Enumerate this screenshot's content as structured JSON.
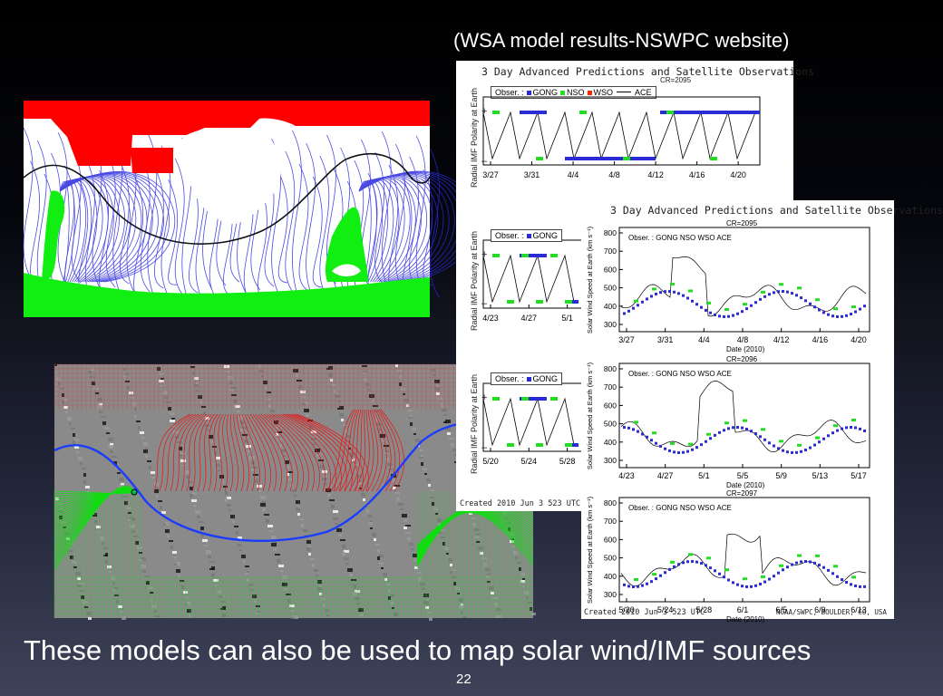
{
  "slide": {
    "caption_top": "(WSA model results-NSWPC website)",
    "caption_bottom": "These models can also be used to map solar wind/IMF sources",
    "slide_number": "22"
  },
  "imf_chart": {
    "title": "3 Day Advanced Predictions and Satellite Observations",
    "cr_labels": [
      "CR=2095"
    ],
    "ylabel": "Radial IMF Polarity at Earth",
    "plus": "+",
    "minus": "–",
    "legend": {
      "obs": "Obser. :",
      "gong": "GONG",
      "nso": "NSO",
      "wso": "WSO",
      "ace": "ACE"
    },
    "panels": [
      {
        "x": [
          "3/27",
          "3/31",
          "4/4",
          "4/8",
          "4/12",
          "4/16",
          "4/20"
        ]
      },
      {
        "x": [
          "4/23",
          "4/27",
          "5/1"
        ]
      },
      {
        "x": [
          "5/20",
          "5/24",
          "5/28"
        ]
      }
    ],
    "footer": "Created 2010 Jun 3 523 UTC"
  },
  "speed_chart": {
    "title": "3 Day Advanced Predictions and Satellite Observations",
    "ylabel": "Solar Wind Speed at Earth (km s⁻¹)",
    "xlabel": "Date (2010)",
    "yticks": [
      "800",
      "700",
      "600",
      "500",
      "400",
      "300"
    ],
    "legend": {
      "obs": "Obser. :",
      "gong": "GONG",
      "nso": "NSO",
      "wso": "WSO",
      "ace": "ACE"
    },
    "panels": [
      {
        "cr": "CR=2095",
        "x": [
          "3/27",
          "3/31",
          "4/4",
          "4/8",
          "4/12",
          "4/16",
          "4/20"
        ]
      },
      {
        "cr": "CR=2096",
        "x": [
          "4/23",
          "4/27",
          "5/1",
          "5/5",
          "5/9",
          "5/13",
          "5/17"
        ]
      },
      {
        "cr": "CR=2097",
        "x": [
          "5/20",
          "5/24",
          "5/28",
          "6/1",
          "6/5",
          "6/9",
          "6/13"
        ]
      }
    ],
    "footer_left": "Created 2010 Jun 3 523 UTC",
    "footer_right": "NOAA/SWPC, BOULDER, CO, USA"
  },
  "colors": {
    "gong": "#2b2bd6",
    "nso": "#22dd22",
    "wso": "#ff2200",
    "ace": "#000000"
  },
  "icons": {
    "field_line_map": "coronal-field-map",
    "magnetogram_map": "synoptic-magnetogram"
  }
}
